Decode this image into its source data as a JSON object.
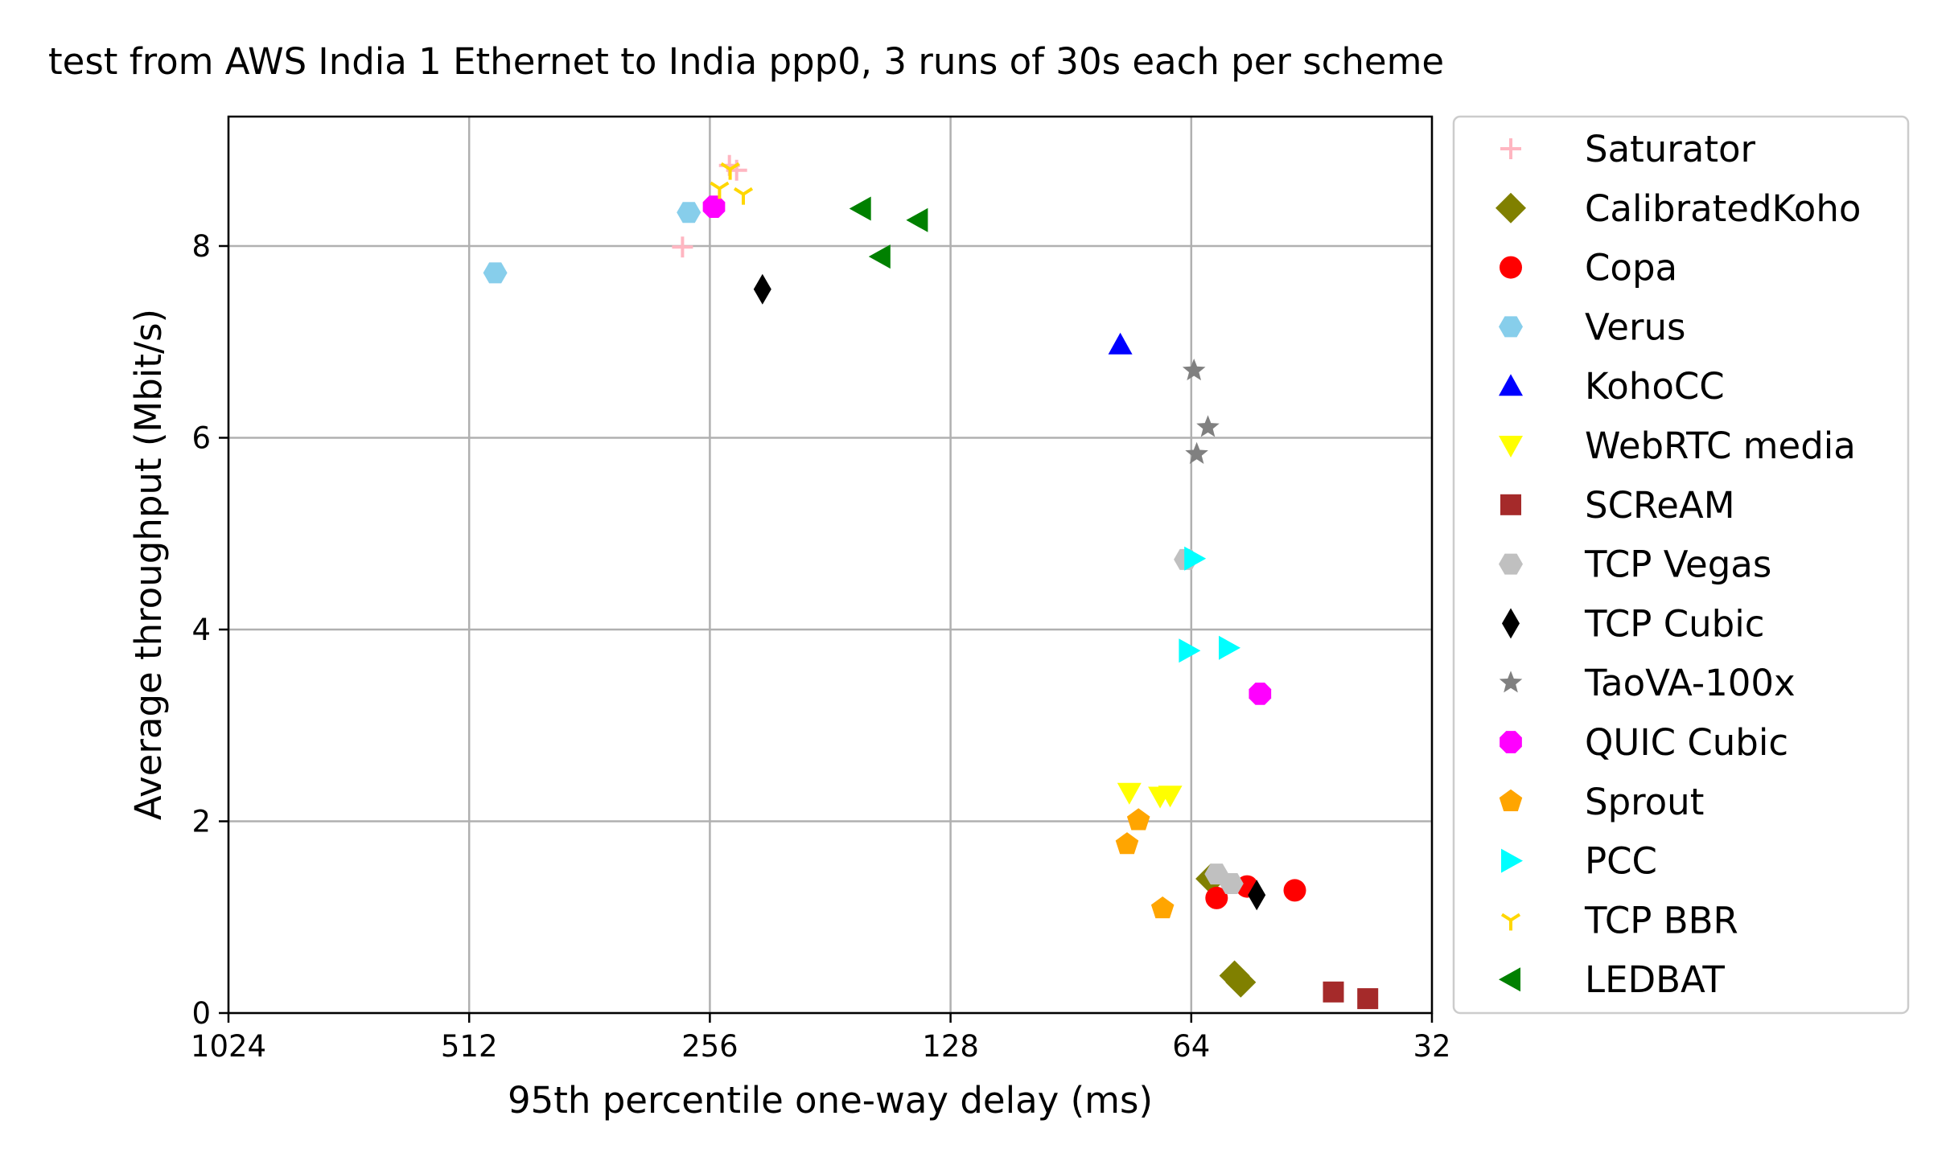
{
  "chart_data": {
    "type": "scatter",
    "title": "test from AWS India 1 Ethernet to India ppp0, 3 runs of 30s each per scheme",
    "xlabel": "95th percentile one-way delay (ms)",
    "ylabel": "Average throughput (Mbit/s)",
    "xscale": "log2",
    "xaxis_inverted": true,
    "xlim": [
      1024,
      32
    ],
    "ylim": [
      0,
      9.35
    ],
    "xticks": [
      1024,
      512,
      256,
      128,
      64,
      32
    ],
    "xtick_labels": [
      "1024",
      "512",
      "256",
      "128",
      "64",
      "32"
    ],
    "yticks": [
      0,
      2,
      4,
      6,
      8
    ],
    "ytick_labels": [
      "0",
      "2",
      "4",
      "6",
      "8"
    ],
    "grid": true,
    "legend_placement": "outside-right",
    "series": [
      {
        "name": "Saturator",
        "marker": "plus",
        "color": "#ffb6c1",
        "points": [
          [
            242,
            8.84
          ],
          [
            237,
            8.79
          ],
          [
            277,
            7.99
          ]
        ]
      },
      {
        "name": "CalibratedKoho",
        "marker": "diamond",
        "color": "#808000",
        "points": [
          [
            60.5,
            1.4
          ],
          [
            56.5,
            0.39
          ],
          [
            55.5,
            0.32
          ]
        ]
      },
      {
        "name": "Copa",
        "marker": "circle",
        "color": "#ff0000",
        "points": [
          [
            54.5,
            1.32
          ],
          [
            59.5,
            1.2
          ],
          [
            47.5,
            1.28
          ]
        ]
      },
      {
        "name": "Verus",
        "marker": "hexagon",
        "color": "#87ceeb",
        "points": [
          [
            475,
            7.72
          ],
          [
            272,
            8.35
          ]
        ]
      },
      {
        "name": "KohoCC",
        "marker": "triangle-up",
        "color": "#0000ff",
        "points": [
          [
            78.5,
            6.97
          ]
        ]
      },
      {
        "name": "WebRTC media",
        "marker": "triangle-down",
        "color": "#ffff00",
        "points": [
          [
            76.5,
            2.3
          ],
          [
            70,
            2.26
          ],
          [
            68,
            2.27
          ]
        ]
      },
      {
        "name": "SCReAM",
        "marker": "square",
        "color": "#a52a2a",
        "points": [
          [
            42.5,
            0.22
          ],
          [
            38.5,
            0.15
          ]
        ]
      },
      {
        "name": "TCP Vegas",
        "marker": "hexagon",
        "color": "#c0c0c0",
        "points": [
          [
            65,
            4.73
          ],
          [
            59.5,
            1.45
          ],
          [
            57,
            1.35
          ]
        ]
      },
      {
        "name": "TCP Cubic",
        "marker": "thin-diamond",
        "color": "#000000",
        "points": [
          [
            220,
            7.55
          ],
          [
            53,
            1.23
          ]
        ]
      },
      {
        "name": "TaoVA-100x",
        "marker": "star",
        "color": "#808080",
        "points": [
          [
            63.5,
            6.7
          ],
          [
            61,
            6.11
          ],
          [
            63,
            5.83
          ]
        ]
      },
      {
        "name": "QUIC Cubic",
        "marker": "octagon",
        "color": "#ff00ff",
        "points": [
          [
            253,
            8.41
          ],
          [
            52.5,
            3.33
          ]
        ]
      },
      {
        "name": "Sprout",
        "marker": "pentagon",
        "color": "#ffa500",
        "points": [
          [
            74.5,
            2.01
          ],
          [
            77,
            1.76
          ],
          [
            69.5,
            1.09
          ]
        ]
      },
      {
        "name": "PCC",
        "marker": "triangle-right",
        "color": "#00ffff",
        "points": [
          [
            63.5,
            4.74
          ],
          [
            64.5,
            3.78
          ],
          [
            57.5,
            3.81
          ]
        ]
      },
      {
        "name": "TCP BBR",
        "marker": "tri-down",
        "color": "#ffd700",
        "points": [
          [
            249,
            8.6
          ],
          [
            241.5,
            8.8
          ],
          [
            232.5,
            8.54
          ]
        ]
      },
      {
        "name": "LEDBAT",
        "marker": "triangle-left",
        "color": "#008000",
        "points": [
          [
            165.5,
            8.39
          ],
          [
            140.5,
            8.27
          ],
          [
            156.5,
            7.89
          ]
        ]
      }
    ]
  }
}
